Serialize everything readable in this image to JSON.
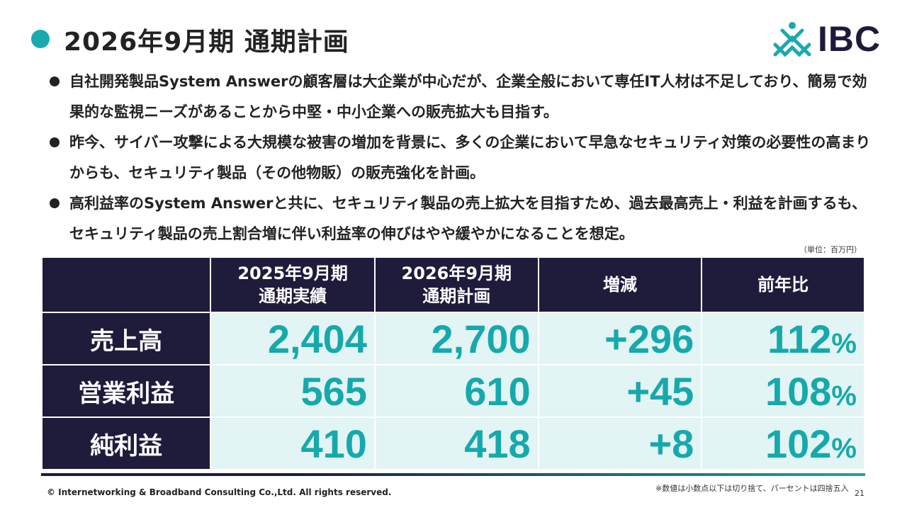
{
  "title": "2026年9月期 通期計画",
  "logo": {
    "text": "IBC"
  },
  "bullets": [
    "自社開発製品System Answerの顧客層は大企業が中心だが、企業全般において専任IT人材は不足しており、簡易で効果的な監視ニーズがあることから中堅・中小企業への販売拡大も目指す。",
    "昨今、サイバー攻撃による大規模な被害の増加を背景に、多くの企業において早急なセキュリティ対策の必要性の高まりからも、セキュリティ製品（その他物販）の販売強化を計画。",
    "高利益率のSystem Answerと共に、セキュリティ製品の売上拡大を目指すため、過去最高売上・利益を計画するも、セキュリティ製品の売上割合増に伴い利益率の伸びはやや緩やかになることを想定。"
  ],
  "unit": "（単位：百万円）",
  "table": {
    "headers": [
      {
        "line1": "2025年9月期",
        "line2": "通期実績"
      },
      {
        "line1": "2026年9月期",
        "line2": "通期計画"
      },
      {
        "line1": "増減",
        "line2": ""
      },
      {
        "line1": "前年比",
        "line2": ""
      }
    ],
    "rows": [
      {
        "label": "売上高",
        "actual": "2,404",
        "plan": "2,700",
        "change": "+296",
        "ratio": "112",
        "pct": "%"
      },
      {
        "label": "営業利益",
        "actual": "565",
        "plan": "610",
        "change": "+45",
        "ratio": "108",
        "pct": "%"
      },
      {
        "label": "純利益",
        "actual": "410",
        "plan": "418",
        "change": "+8",
        "ratio": "102",
        "pct": "%"
      }
    ]
  },
  "footer": {
    "copyright": "© Internetworking & Broadband Consulting Co.,Ltd. All rights reserved.",
    "note": "※数値は小数点以下は切り捨て、パーセントは四捨五入",
    "page": "21"
  },
  "colors": {
    "navy": "#1f1b3b",
    "teal": "#16a9ac",
    "cell": "#e2f4f4"
  }
}
